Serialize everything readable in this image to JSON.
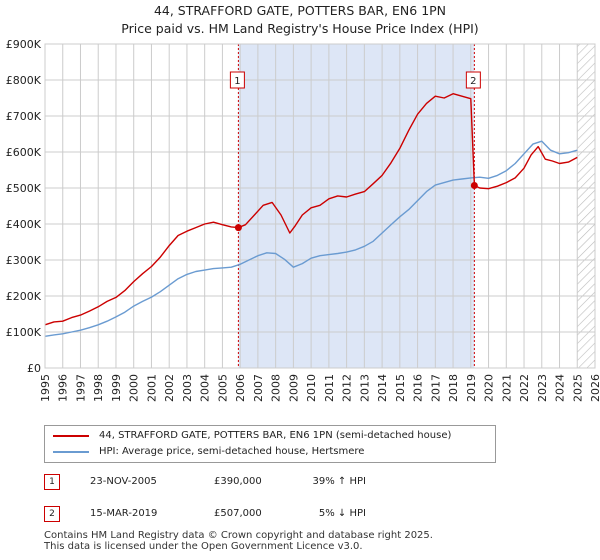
{
  "header": {
    "title": "44, STRAFFORD GATE, POTTERS BAR, EN6 1PN",
    "subtitle": "Price paid vs. HM Land Registry's House Price Index (HPI)"
  },
  "colors": {
    "property": "#cc0000",
    "hpi": "#6a9bd1",
    "shade": "#dde6f6",
    "grid": "#cccccc",
    "marker_line": "#cc0000"
  },
  "chart_data": {
    "type": "line",
    "title": "44, STRAFFORD GATE, POTTERS BAR, EN6 1PN",
    "subtitle": "Price paid vs. HM Land Registry's House Price Index (HPI)",
    "xlabel": "",
    "ylabel": "",
    "xlim": [
      1995,
      2026
    ],
    "ylim": [
      0,
      900000
    ],
    "y_ticks": [
      0,
      100000,
      200000,
      300000,
      400000,
      500000,
      600000,
      700000,
      800000,
      900000
    ],
    "y_tick_labels": [
      "£0",
      "£100K",
      "£200K",
      "£300K",
      "£400K",
      "£500K",
      "£600K",
      "£700K",
      "£800K",
      "£900K"
    ],
    "x_ticks": [
      1995,
      1996,
      1997,
      1998,
      1999,
      2000,
      2001,
      2002,
      2003,
      2004,
      2005,
      2006,
      2007,
      2008,
      2009,
      2010,
      2011,
      2012,
      2013,
      2014,
      2015,
      2016,
      2017,
      2018,
      2019,
      2020,
      2021,
      2022,
      2023,
      2024,
      2025,
      2026
    ],
    "x_tick_labels": [
      "1995",
      "1996",
      "1997",
      "1998",
      "1999",
      "2000",
      "2001",
      "2002",
      "2003",
      "2004",
      "2005",
      "2006",
      "2007",
      "2008",
      "2009",
      "2010",
      "2011",
      "2012",
      "2013",
      "2014",
      "2015",
      "2016",
      "2017",
      "2018",
      "2019",
      "2020",
      "2021",
      "2022",
      "2023",
      "2024",
      "2025",
      "2026"
    ],
    "grid": true,
    "shaded_region": [
      2005.9,
      2019.2
    ],
    "future_hatch_from": 2025.0,
    "series": [
      {
        "name": "44, STRAFFORD GATE, POTTERS BAR, EN6 1PN (semi-detached house)",
        "color": "#cc0000",
        "x": [
          1995.0,
          1995.5,
          1996.0,
          1996.5,
          1997.0,
          1997.5,
          1998.0,
          1998.5,
          1999.0,
          1999.5,
          2000.0,
          2000.5,
          2001.0,
          2001.5,
          2002.0,
          2002.5,
          2003.0,
          2003.5,
          2004.0,
          2004.5,
          2005.0,
          2005.5,
          2005.9,
          2006.3,
          2006.8,
          2007.3,
          2007.8,
          2008.3,
          2008.8,
          2009.1,
          2009.5,
          2010.0,
          2010.5,
          2011.0,
          2011.5,
          2012.0,
          2012.5,
          2013.0,
          2013.5,
          2014.0,
          2014.5,
          2015.0,
          2015.5,
          2016.0,
          2016.5,
          2017.0,
          2017.5,
          2018.0,
          2018.5,
          2019.0,
          2019.2,
          2019.5,
          2020.0,
          2020.5,
          2021.0,
          2021.5,
          2022.0,
          2022.4,
          2022.8,
          2023.2,
          2023.6,
          2024.0,
          2024.5,
          2025.0
        ],
        "values": [
          120000,
          128000,
          130000,
          140000,
          147000,
          158000,
          170000,
          185000,
          196000,
          215000,
          240000,
          262000,
          282000,
          308000,
          340000,
          368000,
          380000,
          390000,
          400000,
          405000,
          398000,
          392000,
          390000,
          398000,
          425000,
          452000,
          460000,
          425000,
          375000,
          395000,
          425000,
          445000,
          452000,
          470000,
          478000,
          475000,
          483000,
          490000,
          512000,
          535000,
          570000,
          610000,
          660000,
          705000,
          735000,
          755000,
          750000,
          762000,
          755000,
          748000,
          507000,
          500000,
          498000,
          505000,
          515000,
          528000,
          555000,
          592000,
          615000,
          580000,
          575000,
          568000,
          572000,
          585000
        ]
      },
      {
        "name": "HPI: Average price, semi-detached house, Hertsmere",
        "color": "#6a9bd1",
        "x": [
          1995.0,
          1995.5,
          1996.0,
          1996.5,
          1997.0,
          1997.5,
          1998.0,
          1998.5,
          1999.0,
          1999.5,
          2000.0,
          2000.5,
          2001.0,
          2001.5,
          2002.0,
          2002.5,
          2003.0,
          2003.5,
          2004.0,
          2004.5,
          2005.0,
          2005.5,
          2006.0,
          2006.5,
          2007.0,
          2007.5,
          2008.0,
          2008.5,
          2009.0,
          2009.5,
          2010.0,
          2010.5,
          2011.0,
          2011.5,
          2012.0,
          2012.5,
          2013.0,
          2013.5,
          2014.0,
          2014.5,
          2015.0,
          2015.5,
          2016.0,
          2016.5,
          2017.0,
          2017.5,
          2018.0,
          2018.5,
          2019.0,
          2019.5,
          2020.0,
          2020.5,
          2021.0,
          2021.5,
          2022.0,
          2022.5,
          2023.0,
          2023.5,
          2024.0,
          2024.5,
          2025.0
        ],
        "values": [
          88000,
          92000,
          95000,
          100000,
          105000,
          112000,
          120000,
          130000,
          142000,
          155000,
          172000,
          185000,
          197000,
          212000,
          230000,
          248000,
          260000,
          268000,
          272000,
          276000,
          278000,
          280000,
          288000,
          300000,
          312000,
          320000,
          318000,
          302000,
          280000,
          290000,
          305000,
          312000,
          315000,
          318000,
          322000,
          328000,
          338000,
          352000,
          375000,
          398000,
          420000,
          440000,
          465000,
          490000,
          508000,
          515000,
          522000,
          525000,
          528000,
          530000,
          527000,
          535000,
          548000,
          568000,
          595000,
          622000,
          630000,
          605000,
          595000,
          598000,
          605000
        ]
      }
    ],
    "annotations": [
      {
        "label": "1",
        "x": 2005.9,
        "value": 390000
      },
      {
        "label": "2",
        "x": 2019.2,
        "value": 507000
      }
    ]
  },
  "legend": {
    "items": [
      {
        "label": "44, STRAFFORD GATE, POTTERS BAR, EN6 1PN (semi-detached house)"
      },
      {
        "label": "HPI: Average price, semi-detached house, Hertsmere"
      }
    ]
  },
  "sales": [
    {
      "num": "1",
      "date": "23-NOV-2005",
      "price": "£390,000",
      "hpi": "39% ↑ HPI"
    },
    {
      "num": "2",
      "date": "15-MAR-2019",
      "price": "£507,000",
      "hpi": "5% ↓ HPI"
    }
  ],
  "footer": {
    "line1": "Contains HM Land Registry data © Crown copyright and database right 2025.",
    "line2": "This data is licensed under the Open Government Licence v3.0."
  }
}
